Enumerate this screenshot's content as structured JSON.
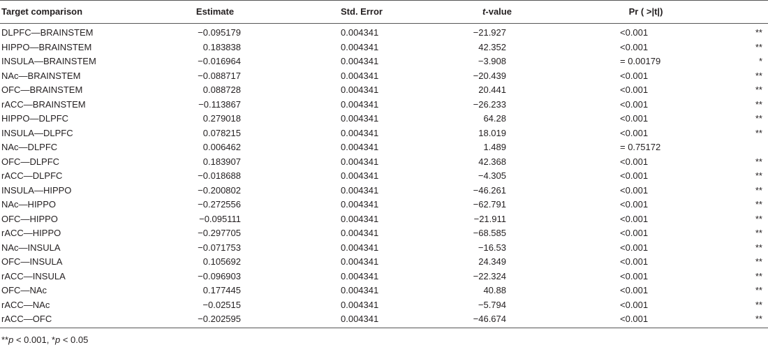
{
  "table": {
    "header": [
      "Target comparison",
      "Estimate",
      "Std. Error",
      [
        "t",
        "-value"
      ],
      "Pr ( >|t|)"
    ],
    "rows": [
      [
        "DLPFC—BRAINSTEM",
        "−0.095179",
        "0.004341",
        "−21.927",
        "<0.001",
        "**"
      ],
      [
        "HIPPO—BRAINSTEM",
        "0.183838",
        "0.004341",
        "42.352",
        "<0.001",
        "**"
      ],
      [
        "INSULA—BRAINSTEM",
        "−0.016964",
        "0.004341",
        "−3.908",
        "= 0.00179",
        "*"
      ],
      [
        "NAc—BRAINSTEM",
        "−0.088717",
        "0.004341",
        "−20.439",
        "<0.001",
        "**"
      ],
      [
        "OFC—BRAINSTEM",
        "0.088728",
        "0.004341",
        "20.441",
        "<0.001",
        "**"
      ],
      [
        "rACC—BRAINSTEM",
        "−0.113867",
        "0.004341",
        "−26.233",
        "<0.001",
        "**"
      ],
      [
        "HIPPO—DLPFC",
        "0.279018",
        "0.004341",
        "64.28",
        "<0.001",
        "**"
      ],
      [
        "INSULA—DLPFC",
        "0.078215",
        "0.004341",
        "18.019",
        "<0.001",
        "**"
      ],
      [
        "NAc—DLPFC",
        "0.006462",
        "0.004341",
        "1.489",
        "= 0.75172"
      ],
      [
        "OFC—DLPFC",
        "0.183907",
        "0.004341",
        "42.368",
        "<0.001",
        "**"
      ],
      [
        "rACC—DLPFC",
        "−0.018688",
        "0.004341",
        "−4.305",
        "<0.001",
        "**"
      ],
      [
        "INSULA—HIPPO",
        "−0.200802",
        "0.004341",
        "−46.261",
        "<0.001",
        "**"
      ],
      [
        "NAc—HIPPO",
        "−0.272556",
        "0.004341",
        "−62.791",
        "<0.001",
        "**"
      ],
      [
        "OFC—HIPPO",
        "−0.095111",
        "0.004341",
        "−21.911",
        "<0.001",
        "**"
      ],
      [
        "rACC—HIPPO",
        "−0.297705",
        "0.004341",
        "−68.585",
        "<0.001",
        "**"
      ],
      [
        "NAc—INSULA",
        "−0.071753",
        "0.004341",
        "−16.53",
        "<0.001",
        "**"
      ],
      [
        "OFC—INSULA",
        "0.105692",
        "0.004341",
        "24.349",
        "<0.001",
        "**"
      ],
      [
        "rACC—INSULA",
        "−0.096903",
        "0.004341",
        "−22.324",
        "<0.001",
        "**"
      ],
      [
        "OFC—NAc",
        "0.177445",
        "0.004341",
        "40.88",
        "<0.001",
        "**"
      ],
      [
        "rACC—NAc",
        "−0.02515",
        "0.004341",
        "−5.794",
        "<0.001",
        "**"
      ],
      [
        "rACC—OFC",
        "−0.202595",
        "0.004341",
        "−46.674",
        "<0.001",
        "**"
      ]
    ],
    "footnote": [
      "**",
      "p",
      " < 0.001, *",
      "p",
      " < 0.05"
    ]
  }
}
